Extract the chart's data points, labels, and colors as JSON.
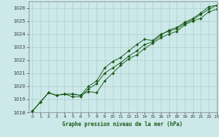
{
  "title": "Graphe pression niveau de la mer (hPa)",
  "bg_color": "#cce8e8",
  "grid_color": "#aacccc",
  "line_color": "#1a5c1a",
  "xlim": [
    -0.5,
    23
  ],
  "ylim": [
    1018,
    1026.5
  ],
  "xticks": [
    0,
    1,
    2,
    3,
    4,
    5,
    6,
    7,
    8,
    9,
    10,
    11,
    12,
    13,
    14,
    15,
    16,
    17,
    18,
    19,
    20,
    21,
    22,
    23
  ],
  "yticks": [
    1018,
    1019,
    1020,
    1021,
    1022,
    1023,
    1024,
    1025,
    1026
  ],
  "line1_x": [
    0,
    1,
    2,
    3,
    4,
    5,
    6,
    7,
    8,
    9,
    10,
    11,
    12,
    13,
    14,
    15,
    16,
    17,
    18,
    19,
    20,
    21,
    22,
    23
  ],
  "line1_y": [
    1018.1,
    1018.8,
    1019.5,
    1019.3,
    1019.4,
    1019.4,
    1019.3,
    1019.6,
    1019.5,
    1020.4,
    1021.0,
    1021.6,
    1022.1,
    1022.4,
    1022.9,
    1023.3,
    1023.7,
    1024.0,
    1024.2,
    1024.7,
    1025.0,
    1025.2,
    1025.7,
    1025.9
  ],
  "line2_x": [
    0,
    1,
    2,
    3,
    4,
    5,
    6,
    7,
    8,
    9,
    10,
    11,
    12,
    13,
    14,
    15,
    16,
    17,
    18,
    19,
    20,
    21,
    22,
    23
  ],
  "line2_y": [
    1018.1,
    1018.8,
    1019.5,
    1019.3,
    1019.4,
    1019.4,
    1019.3,
    1020.0,
    1020.4,
    1021.4,
    1021.9,
    1022.2,
    1022.7,
    1023.2,
    1023.6,
    1023.5,
    1024.0,
    1024.2,
    1024.4,
    1024.8,
    1025.1,
    1025.5,
    1025.9,
    1026.2
  ],
  "line3_x": [
    0,
    1,
    2,
    3,
    4,
    5,
    6,
    7,
    8,
    9,
    10,
    11,
    12,
    13,
    14,
    15,
    16,
    17,
    18,
    19,
    20,
    21,
    22,
    23
  ],
  "line3_y": [
    1018.1,
    1018.8,
    1019.5,
    1019.3,
    1019.4,
    1019.2,
    1019.2,
    1019.8,
    1020.2,
    1021.0,
    1021.4,
    1021.8,
    1022.3,
    1022.7,
    1023.2,
    1023.4,
    1023.9,
    1024.3,
    1024.5,
    1024.9,
    1025.2,
    1025.6,
    1026.1,
    1026.2
  ]
}
